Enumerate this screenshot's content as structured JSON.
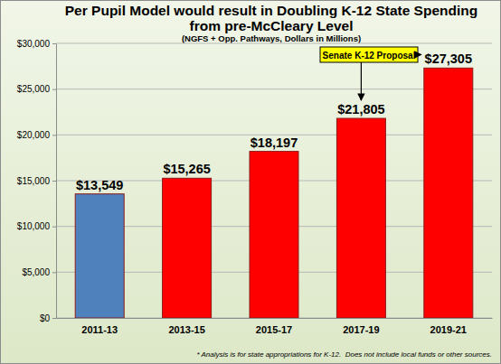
{
  "chart_data": {
    "type": "bar",
    "title": [
      "Per Pupil Model would result in Doubling K-12 State Spending",
      "from pre-McCleary Level"
    ],
    "subtitle": "(NGFS + Opp. Pathways, Dollars in Millions)",
    "categories": [
      "2011-13",
      "2013-15",
      "2015-17",
      "2017-19",
      "2019-21"
    ],
    "values": [
      13549,
      15265,
      18197,
      21805,
      27305
    ],
    "value_labels": [
      "$13,549",
      "$15,265",
      "$18,197",
      "$21,805",
      "$27,305"
    ],
    "colors": [
      "#4F81BD",
      "#FF0000",
      "#FF0000",
      "#FF0000",
      "#FF0000"
    ],
    "ylim": [
      0,
      30000
    ],
    "yticks": [
      {
        "value": 0,
        "label": "$0"
      },
      {
        "value": 5000,
        "label": "$5,000"
      },
      {
        "value": 10000,
        "label": "$10,000"
      },
      {
        "value": 15000,
        "label": "$15,000"
      },
      {
        "value": 20000,
        "label": "$20,000"
      },
      {
        "value": 25000,
        "label": "$25,000"
      },
      {
        "value": 30000,
        "label": "$30,000"
      }
    ],
    "grid": true,
    "data_labels": true,
    "annotation": "Senate K-12 Proposal",
    "footnote": "* Analysis is for state appropriations for K-12.  Does not include local funds or other sources."
  }
}
